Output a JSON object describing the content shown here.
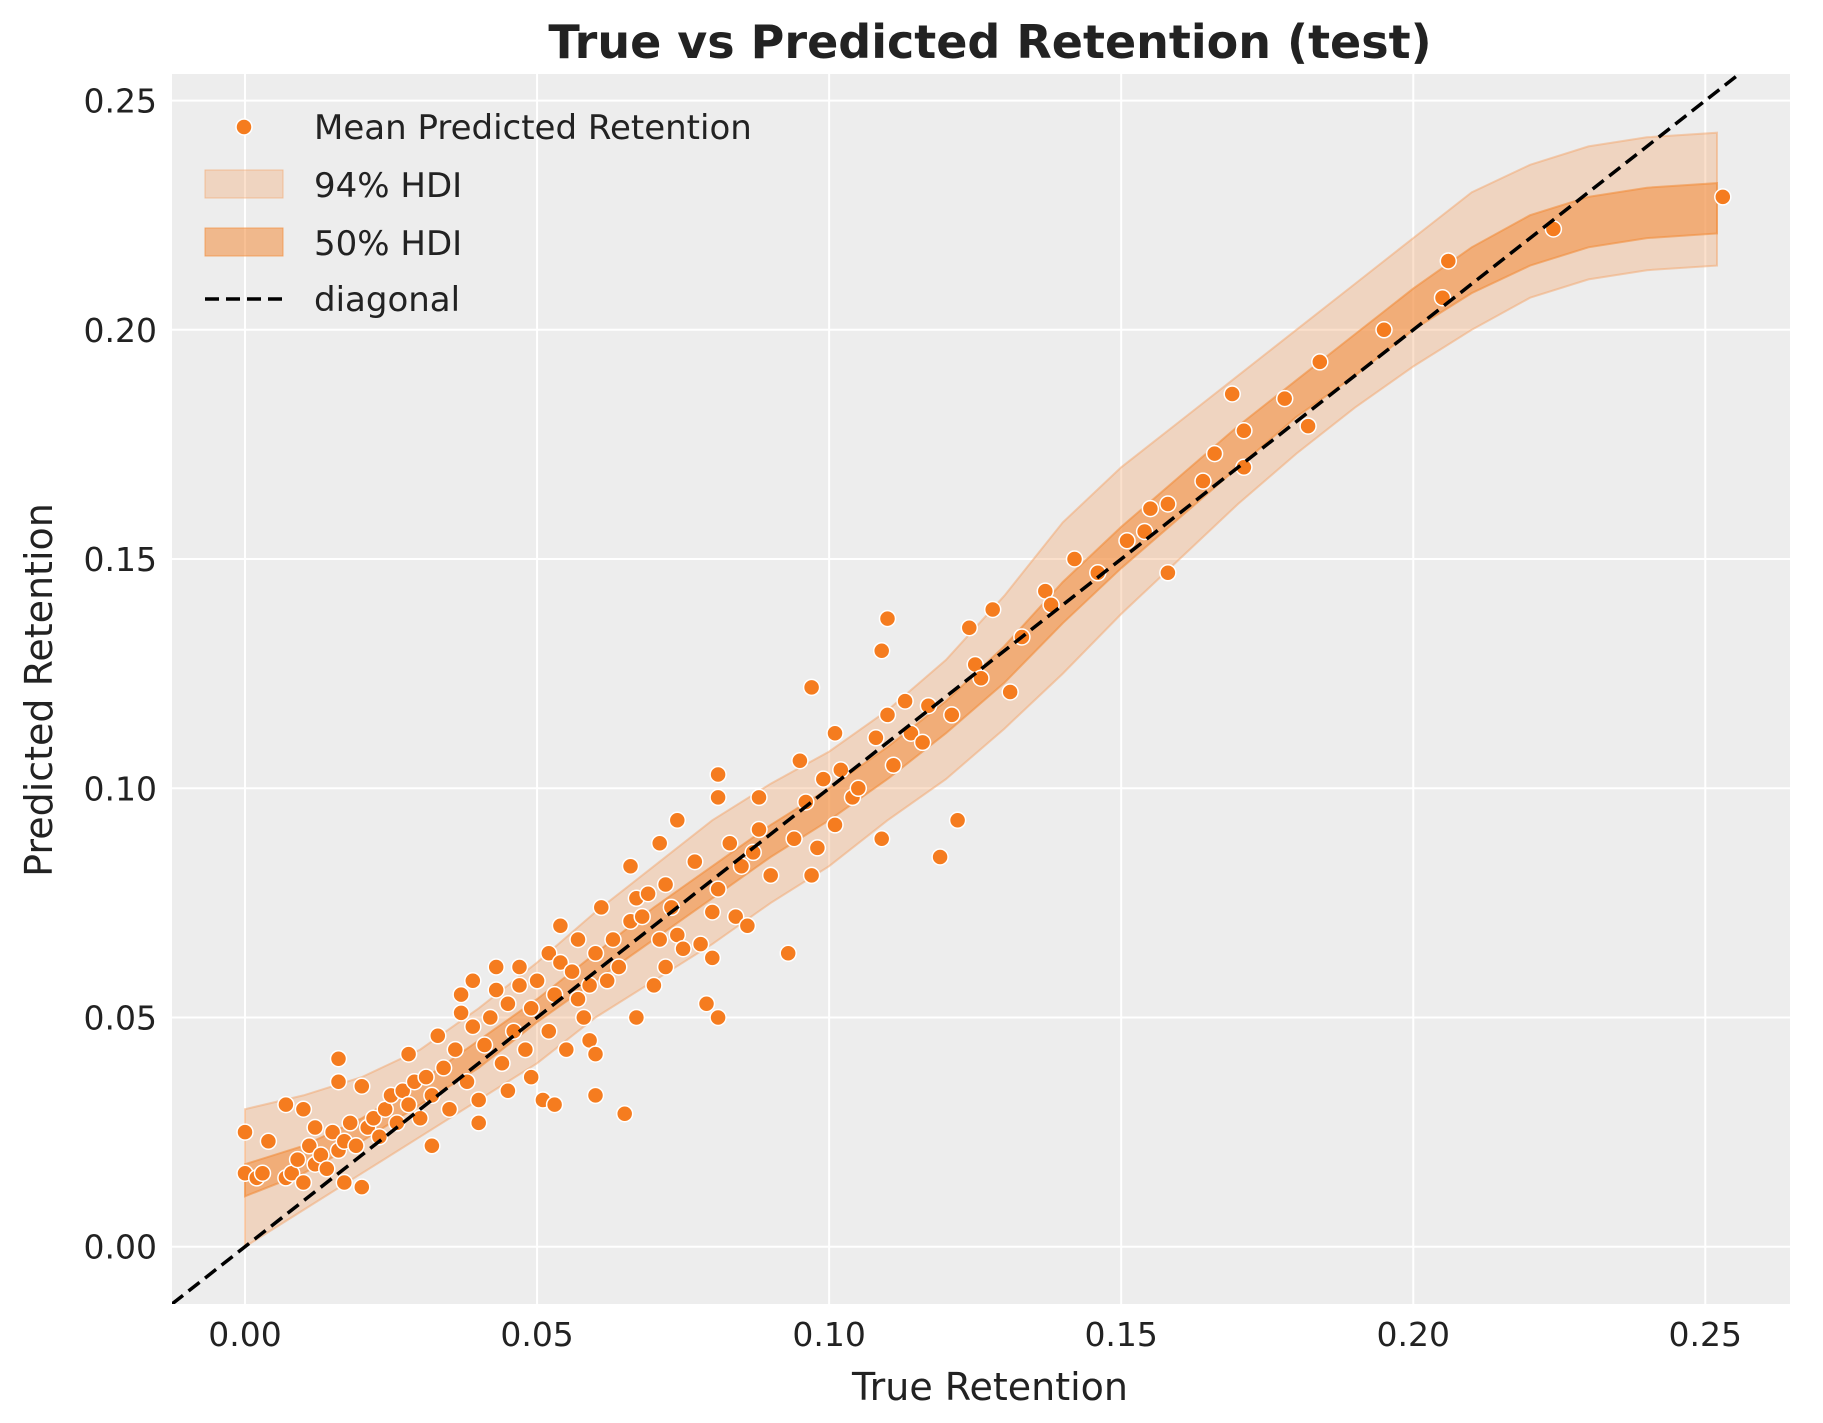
{
  "chart_data": {
    "type": "scatter",
    "title": "True vs Predicted Retention (test)",
    "xlabel": "True Retention",
    "ylabel": "Predicted Retention",
    "xlim": [
      -0.0125,
      0.2645
    ],
    "ylim": [
      -0.0125,
      0.2558
    ],
    "grid": true,
    "legend_position": "top-left",
    "x_ticks": [
      0.0,
      0.05,
      0.1,
      0.15,
      0.2,
      0.25
    ],
    "x_tick_labels": [
      "0.00",
      "0.05",
      "0.10",
      "0.15",
      "0.20",
      "0.25"
    ],
    "y_ticks": [
      0.0,
      0.05,
      0.1,
      0.15,
      0.2,
      0.25
    ],
    "y_tick_labels": [
      "0.00",
      "0.05",
      "0.10",
      "0.15",
      "0.20",
      "0.25"
    ],
    "colors": {
      "background": "#ededed",
      "grid": "#ffffff",
      "point": "#f57c1f",
      "point_edge": "#ffffff",
      "hdi94": "#f4a66c",
      "hdi94_opacity": 0.35,
      "hdi50": "#f28d3c",
      "hdi50_opacity": 0.55,
      "diagonal": "#000000"
    },
    "legend": [
      {
        "label": "Mean Predicted Retention",
        "kind": "point"
      },
      {
        "label": "94% HDI",
        "kind": "hdi94"
      },
      {
        "label": "50% HDI",
        "kind": "hdi50"
      },
      {
        "label": "diagonal",
        "kind": "diagonal"
      }
    ],
    "diagonal": {
      "x": [
        -0.0125,
        0.2645
      ],
      "y": [
        -0.0125,
        0.2645
      ]
    },
    "hdi94": {
      "x": [
        0.0,
        0.01,
        0.02,
        0.03,
        0.04,
        0.05,
        0.06,
        0.07,
        0.08,
        0.09,
        0.1,
        0.11,
        0.12,
        0.13,
        0.14,
        0.15,
        0.16,
        0.17,
        0.18,
        0.19,
        0.2,
        0.21,
        0.22,
        0.23,
        0.24,
        0.252
      ],
      "lower": [
        0.0,
        0.008,
        0.016,
        0.024,
        0.032,
        0.04,
        0.05,
        0.058,
        0.066,
        0.075,
        0.083,
        0.093,
        0.102,
        0.113,
        0.125,
        0.138,
        0.15,
        0.162,
        0.173,
        0.183,
        0.192,
        0.2,
        0.207,
        0.211,
        0.213,
        0.214
      ],
      "upper": [
        0.03,
        0.033,
        0.037,
        0.043,
        0.052,
        0.062,
        0.073,
        0.083,
        0.093,
        0.101,
        0.108,
        0.117,
        0.128,
        0.142,
        0.158,
        0.17,
        0.18,
        0.19,
        0.2,
        0.21,
        0.22,
        0.23,
        0.236,
        0.24,
        0.242,
        0.243
      ]
    },
    "hdi50": {
      "x": [
        0.0,
        0.01,
        0.02,
        0.03,
        0.04,
        0.05,
        0.06,
        0.07,
        0.08,
        0.09,
        0.1,
        0.11,
        0.12,
        0.13,
        0.14,
        0.15,
        0.16,
        0.17,
        0.18,
        0.19,
        0.2,
        0.21,
        0.22,
        0.23,
        0.24,
        0.252
      ],
      "lower": [
        0.011,
        0.016,
        0.023,
        0.031,
        0.039,
        0.049,
        0.058,
        0.067,
        0.076,
        0.085,
        0.093,
        0.102,
        0.112,
        0.123,
        0.136,
        0.148,
        0.159,
        0.17,
        0.181,
        0.19,
        0.2,
        0.208,
        0.214,
        0.218,
        0.22,
        0.221
      ],
      "upper": [
        0.018,
        0.022,
        0.028,
        0.036,
        0.045,
        0.054,
        0.064,
        0.074,
        0.083,
        0.092,
        0.1,
        0.109,
        0.119,
        0.131,
        0.145,
        0.157,
        0.168,
        0.179,
        0.189,
        0.199,
        0.209,
        0.218,
        0.225,
        0.229,
        0.231,
        0.232
      ]
    },
    "series": [
      {
        "name": "Mean Predicted Retention",
        "points": [
          [
            0.0,
            0.025
          ],
          [
            0.0,
            0.016
          ],
          [
            0.002,
            0.015
          ],
          [
            0.003,
            0.016
          ],
          [
            0.004,
            0.023
          ],
          [
            0.007,
            0.031
          ],
          [
            0.007,
            0.015
          ],
          [
            0.008,
            0.016
          ],
          [
            0.009,
            0.019
          ],
          [
            0.01,
            0.03
          ],
          [
            0.01,
            0.014
          ],
          [
            0.011,
            0.022
          ],
          [
            0.012,
            0.026
          ],
          [
            0.012,
            0.018
          ],
          [
            0.013,
            0.02
          ],
          [
            0.014,
            0.017
          ],
          [
            0.015,
            0.025
          ],
          [
            0.016,
            0.021
          ],
          [
            0.016,
            0.041
          ],
          [
            0.016,
            0.036
          ],
          [
            0.017,
            0.023
          ],
          [
            0.017,
            0.014
          ],
          [
            0.018,
            0.027
          ],
          [
            0.019,
            0.022
          ],
          [
            0.02,
            0.035
          ],
          [
            0.02,
            0.013
          ],
          [
            0.021,
            0.026
          ],
          [
            0.022,
            0.028
          ],
          [
            0.023,
            0.024
          ],
          [
            0.024,
            0.03
          ],
          [
            0.025,
            0.033
          ],
          [
            0.026,
            0.027
          ],
          [
            0.027,
            0.034
          ],
          [
            0.028,
            0.031
          ],
          [
            0.028,
            0.042
          ],
          [
            0.029,
            0.036
          ],
          [
            0.03,
            0.028
          ],
          [
            0.031,
            0.037
          ],
          [
            0.032,
            0.033
          ],
          [
            0.032,
            0.022
          ],
          [
            0.033,
            0.046
          ],
          [
            0.034,
            0.039
          ],
          [
            0.035,
            0.03
          ],
          [
            0.036,
            0.043
          ],
          [
            0.037,
            0.051
          ],
          [
            0.037,
            0.055
          ],
          [
            0.038,
            0.036
          ],
          [
            0.039,
            0.058
          ],
          [
            0.039,
            0.048
          ],
          [
            0.04,
            0.032
          ],
          [
            0.04,
            0.027
          ],
          [
            0.041,
            0.044
          ],
          [
            0.042,
            0.05
          ],
          [
            0.043,
            0.056
          ],
          [
            0.043,
            0.061
          ],
          [
            0.044,
            0.04
          ],
          [
            0.045,
            0.034
          ],
          [
            0.045,
            0.053
          ],
          [
            0.046,
            0.047
          ],
          [
            0.047,
            0.057
          ],
          [
            0.047,
            0.061
          ],
          [
            0.048,
            0.043
          ],
          [
            0.049,
            0.052
          ],
          [
            0.049,
            0.037
          ],
          [
            0.05,
            0.058
          ],
          [
            0.051,
            0.032
          ],
          [
            0.052,
            0.064
          ],
          [
            0.052,
            0.047
          ],
          [
            0.053,
            0.055
          ],
          [
            0.053,
            0.031
          ],
          [
            0.054,
            0.07
          ],
          [
            0.054,
            0.062
          ],
          [
            0.055,
            0.043
          ],
          [
            0.056,
            0.06
          ],
          [
            0.057,
            0.067
          ],
          [
            0.057,
            0.054
          ],
          [
            0.058,
            0.05
          ],
          [
            0.059,
            0.057
          ],
          [
            0.059,
            0.045
          ],
          [
            0.06,
            0.064
          ],
          [
            0.06,
            0.042
          ],
          [
            0.06,
            0.033
          ],
          [
            0.061,
            0.074
          ],
          [
            0.062,
            0.058
          ],
          [
            0.063,
            0.067
          ],
          [
            0.064,
            0.061
          ],
          [
            0.065,
            0.029
          ],
          [
            0.066,
            0.083
          ],
          [
            0.066,
            0.071
          ],
          [
            0.067,
            0.076
          ],
          [
            0.067,
            0.05
          ],
          [
            0.068,
            0.072
          ],
          [
            0.069,
            0.077
          ],
          [
            0.07,
            0.057
          ],
          [
            0.071,
            0.088
          ],
          [
            0.071,
            0.067
          ],
          [
            0.072,
            0.079
          ],
          [
            0.072,
            0.061
          ],
          [
            0.073,
            0.074
          ],
          [
            0.074,
            0.093
          ],
          [
            0.074,
            0.068
          ],
          [
            0.075,
            0.065
          ],
          [
            0.077,
            0.084
          ],
          [
            0.078,
            0.066
          ],
          [
            0.079,
            0.053
          ],
          [
            0.08,
            0.073
          ],
          [
            0.08,
            0.063
          ],
          [
            0.081,
            0.103
          ],
          [
            0.081,
            0.098
          ],
          [
            0.081,
            0.078
          ],
          [
            0.081,
            0.05
          ],
          [
            0.083,
            0.088
          ],
          [
            0.084,
            0.072
          ],
          [
            0.085,
            0.083
          ],
          [
            0.086,
            0.07
          ],
          [
            0.087,
            0.086
          ],
          [
            0.088,
            0.098
          ],
          [
            0.088,
            0.091
          ],
          [
            0.09,
            0.081
          ],
          [
            0.093,
            0.064
          ],
          [
            0.094,
            0.089
          ],
          [
            0.095,
            0.106
          ],
          [
            0.096,
            0.097
          ],
          [
            0.097,
            0.122
          ],
          [
            0.097,
            0.081
          ],
          [
            0.098,
            0.087
          ],
          [
            0.099,
            0.102
          ],
          [
            0.101,
            0.112
          ],
          [
            0.101,
            0.092
          ],
          [
            0.102,
            0.104
          ],
          [
            0.104,
            0.098
          ],
          [
            0.105,
            0.1
          ],
          [
            0.108,
            0.111
          ],
          [
            0.109,
            0.13
          ],
          [
            0.109,
            0.089
          ],
          [
            0.11,
            0.137
          ],
          [
            0.11,
            0.116
          ],
          [
            0.111,
            0.105
          ],
          [
            0.113,
            0.119
          ],
          [
            0.114,
            0.112
          ],
          [
            0.116,
            0.11
          ],
          [
            0.117,
            0.118
          ],
          [
            0.119,
            0.085
          ],
          [
            0.121,
            0.116
          ],
          [
            0.122,
            0.093
          ],
          [
            0.124,
            0.135
          ],
          [
            0.125,
            0.127
          ],
          [
            0.126,
            0.124
          ],
          [
            0.128,
            0.139
          ],
          [
            0.131,
            0.121
          ],
          [
            0.133,
            0.133
          ],
          [
            0.137,
            0.143
          ],
          [
            0.138,
            0.14
          ],
          [
            0.142,
            0.15
          ],
          [
            0.146,
            0.147
          ],
          [
            0.151,
            0.154
          ],
          [
            0.154,
            0.156
          ],
          [
            0.155,
            0.161
          ],
          [
            0.158,
            0.162
          ],
          [
            0.158,
            0.147
          ],
          [
            0.164,
            0.167
          ],
          [
            0.166,
            0.173
          ],
          [
            0.169,
            0.186
          ],
          [
            0.171,
            0.178
          ],
          [
            0.171,
            0.17
          ],
          [
            0.178,
            0.185
          ],
          [
            0.182,
            0.179
          ],
          [
            0.184,
            0.193
          ],
          [
            0.195,
            0.2
          ],
          [
            0.205,
            0.207
          ],
          [
            0.206,
            0.215
          ],
          [
            0.224,
            0.222
          ],
          [
            0.253,
            0.229
          ]
        ]
      }
    ]
  }
}
